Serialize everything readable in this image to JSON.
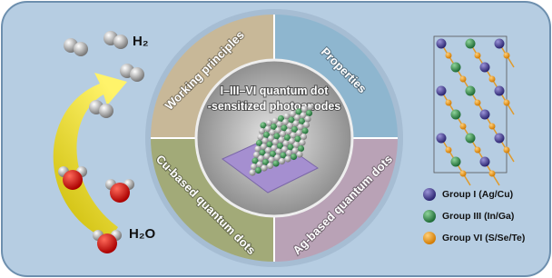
{
  "labels": {
    "h2": "H₂",
    "h2o": "H₂O"
  },
  "quadrants": {
    "top_left": "Working principles",
    "top_right": "Properties",
    "bottom_left": "Cu-based quantum dots",
    "bottom_right": "Ag-based quantum dots"
  },
  "center": {
    "line1": "I–III–VI quantum dot",
    "line2": "-sensitized photoanodes"
  },
  "legend": [
    "Group I (Ag/Cu)",
    "Group III (In/Ga)",
    "Group VI (S/Se/Te)"
  ]
}
